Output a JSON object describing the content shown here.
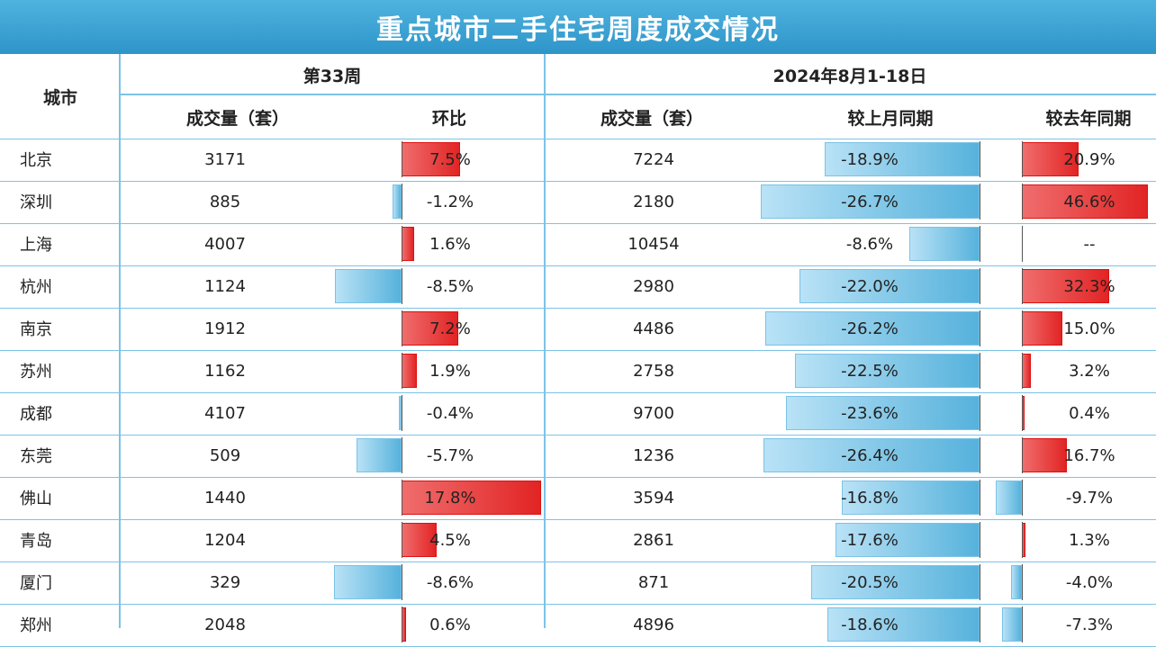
{
  "title": "重点城市二手住宅周度成交情况",
  "headers": {
    "city": "城市",
    "week_group": "第33周",
    "period_group": "2024年8月1-18日",
    "week_volume": "成交量（套）",
    "week_mom": "环比",
    "period_volume": "成交量（套）",
    "period_mom": "较上月同期",
    "period_yoy": "较去年同期"
  },
  "chart_data": {
    "type": "table",
    "columns": [
      "城市",
      "第33周 成交量（套）",
      "第33周 环比",
      "2024年8月1-18日 成交量（套）",
      "较上月同期",
      "较去年同期"
    ],
    "rows": [
      {
        "city": "北京",
        "week_volume": "3171",
        "week_change": 7.5,
        "week_change_text": "7.5%",
        "period_volume": "7224",
        "mom": -18.9,
        "mom_text": "-18.9%",
        "yoy": 20.9,
        "yoy_text": "20.9%"
      },
      {
        "city": "深圳",
        "week_volume": "885",
        "week_change": -1.2,
        "week_change_text": "-1.2%",
        "period_volume": "2180",
        "mom": -26.7,
        "mom_text": "-26.7%",
        "yoy": 46.6,
        "yoy_text": "46.6%"
      },
      {
        "city": "上海",
        "week_volume": "4007",
        "week_change": 1.6,
        "week_change_text": "1.6%",
        "period_volume": "10454",
        "mom": -8.6,
        "mom_text": "-8.6%",
        "yoy": null,
        "yoy_text": "--"
      },
      {
        "city": "杭州",
        "week_volume": "1124",
        "week_change": -8.5,
        "week_change_text": "-8.5%",
        "period_volume": "2980",
        "mom": -22.0,
        "mom_text": "-22.0%",
        "yoy": 32.3,
        "yoy_text": "32.3%"
      },
      {
        "city": "南京",
        "week_volume": "1912",
        "week_change": 7.2,
        "week_change_text": "7.2%",
        "period_volume": "4486",
        "mom": -26.2,
        "mom_text": "-26.2%",
        "yoy": 15.0,
        "yoy_text": "15.0%"
      },
      {
        "city": "苏州",
        "week_volume": "1162",
        "week_change": 1.9,
        "week_change_text": "1.9%",
        "period_volume": "2758",
        "mom": -22.5,
        "mom_text": "-22.5%",
        "yoy": 3.2,
        "yoy_text": "3.2%"
      },
      {
        "city": "成都",
        "week_volume": "4107",
        "week_change": -0.4,
        "week_change_text": "-0.4%",
        "period_volume": "9700",
        "mom": -23.6,
        "mom_text": "-23.6%",
        "yoy": 0.4,
        "yoy_text": "0.4%"
      },
      {
        "city": "东莞",
        "week_volume": "509",
        "week_change": -5.7,
        "week_change_text": "-5.7%",
        "period_volume": "1236",
        "mom": -26.4,
        "mom_text": "-26.4%",
        "yoy": 16.7,
        "yoy_text": "16.7%"
      },
      {
        "city": "佛山",
        "week_volume": "1440",
        "week_change": 17.8,
        "week_change_text": "17.8%",
        "period_volume": "3594",
        "mom": -16.8,
        "mom_text": "-16.8%",
        "yoy": -9.7,
        "yoy_text": "-9.7%"
      },
      {
        "city": "青岛",
        "week_volume": "1204",
        "week_change": 4.5,
        "week_change_text": "4.5%",
        "period_volume": "2861",
        "mom": -17.6,
        "mom_text": "-17.6%",
        "yoy": 1.3,
        "yoy_text": "1.3%"
      },
      {
        "city": "厦门",
        "week_volume": "329",
        "week_change": -8.6,
        "week_change_text": "-8.6%",
        "period_volume": "871",
        "mom": -20.5,
        "mom_text": "-20.5%",
        "yoy": -4.0,
        "yoy_text": "-4.0%"
      },
      {
        "city": "郑州",
        "week_volume": "2048",
        "week_change": 0.6,
        "week_change_text": "0.6%",
        "period_volume": "4896",
        "mom": -18.6,
        "mom_text": "-18.6%",
        "yoy": -7.3,
        "yoy_text": "-7.3%"
      }
    ],
    "positive_color": "#e22424",
    "negative_color": "#56b2dc"
  }
}
